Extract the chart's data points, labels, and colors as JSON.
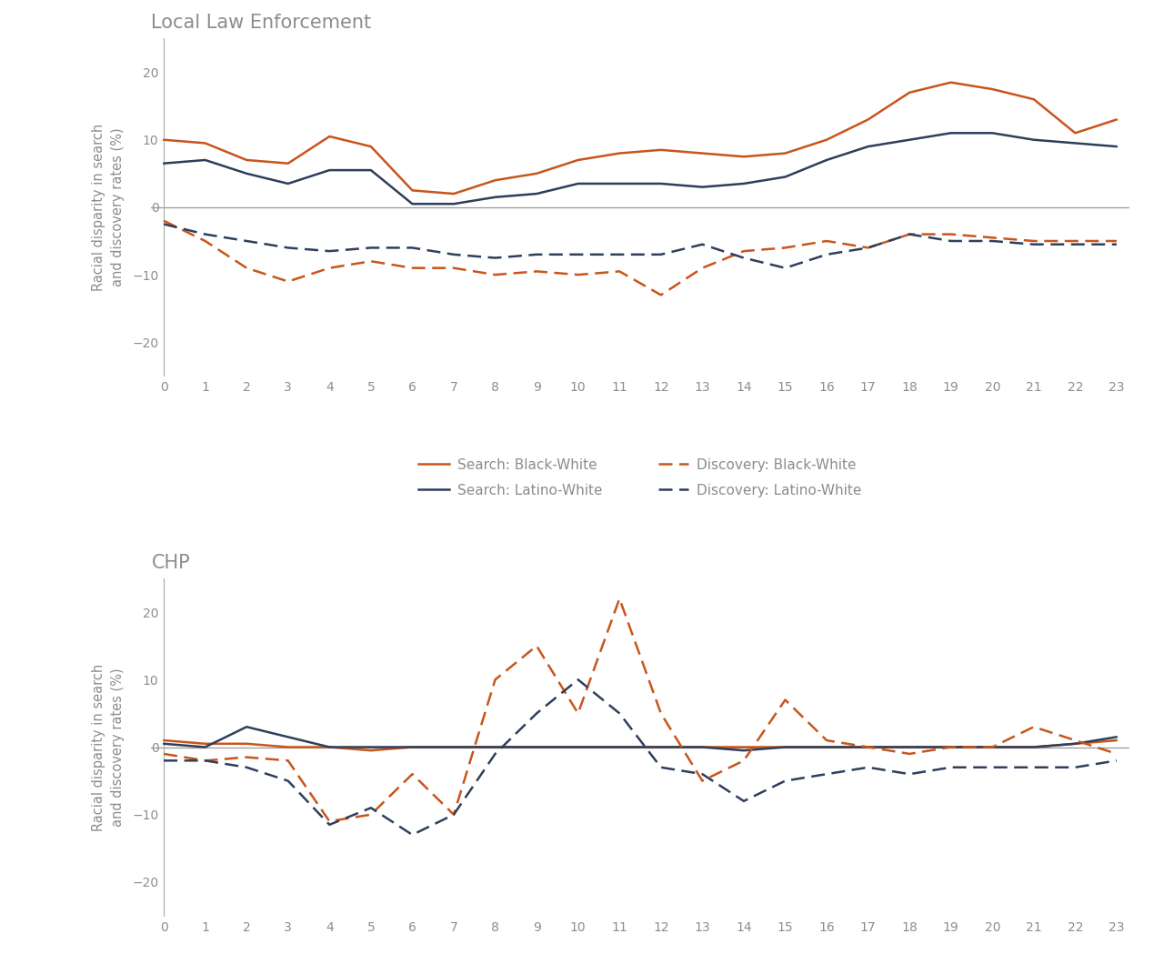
{
  "hours": [
    0,
    1,
    2,
    3,
    4,
    5,
    6,
    7,
    8,
    9,
    10,
    11,
    12,
    13,
    14,
    15,
    16,
    17,
    18,
    19,
    20,
    21,
    22,
    23
  ],
  "lea_search_black": [
    10,
    9.5,
    7,
    6.5,
    10.5,
    9,
    2.5,
    2,
    4,
    5,
    7,
    8,
    8.5,
    8,
    7.5,
    8,
    10,
    13,
    17,
    18.5,
    17.5,
    16,
    11,
    13
  ],
  "lea_search_latino": [
    6.5,
    7,
    5,
    3.5,
    5.5,
    5.5,
    0.5,
    0.5,
    1.5,
    2,
    3.5,
    3.5,
    3.5,
    3,
    3.5,
    4.5,
    7,
    9,
    10,
    11,
    11,
    10,
    9.5,
    9
  ],
  "lea_discovery_black": [
    -2,
    -5,
    -9,
    -11,
    -9,
    -8,
    -9,
    -9,
    -10,
    -9.5,
    -10,
    -9.5,
    -13,
    -9,
    -6.5,
    -6,
    -5,
    -6,
    -4,
    -4,
    -4.5,
    -5,
    -5,
    -5
  ],
  "lea_discovery_latino": [
    -2.5,
    -4,
    -5,
    -6,
    -6.5,
    -6,
    -6,
    -7,
    -7.5,
    -7,
    -7,
    -7,
    -7,
    -5.5,
    -7.5,
    -9,
    -7,
    -6,
    -4,
    -5,
    -5,
    -5.5,
    -5.5,
    -5.5
  ],
  "chp_search_black": [
    1,
    0.5,
    0.5,
    0,
    0,
    -0.5,
    0,
    0,
    0,
    0,
    0,
    0,
    0,
    0,
    0,
    0,
    0,
    0,
    0,
    0,
    0,
    0,
    0.5,
    1
  ],
  "chp_search_latino": [
    0.5,
    0,
    3,
    1.5,
    0,
    0,
    0,
    0,
    0,
    0,
    0,
    0,
    0,
    0,
    -0.5,
    0,
    0,
    0,
    0,
    0,
    0,
    0,
    0.5,
    1.5
  ],
  "chp_discovery_black": [
    -1,
    -2,
    -1.5,
    -2,
    -11,
    -10,
    -4,
    -10,
    10,
    15,
    5,
    22,
    5,
    -5,
    -2,
    7,
    1,
    0,
    -1,
    0,
    0,
    3,
    1,
    -1
  ],
  "chp_discovery_latino": [
    -2,
    -2,
    -3,
    -5,
    -11.5,
    -9,
    -13,
    -10,
    -1,
    5,
    10,
    5,
    -3,
    -4,
    -8,
    -5,
    -4,
    -3,
    -4,
    -3,
    -3,
    -3,
    -3,
    -2
  ],
  "orange_color": "#C8551B",
  "navy_color": "#2E3F5C",
  "title_lea": "Local Law Enforcement",
  "title_chp": "CHP",
  "ylabel": "Racial disparity in search\nand discovery rates (%)",
  "legend_labels": [
    "Search: Black-White",
    "Search: Latino-White",
    "Discovery: Black-White",
    "Discovery: Latino-White"
  ],
  "ylim": [
    -25,
    25
  ],
  "yticks": [
    -20,
    -10,
    0,
    10,
    20
  ],
  "background_color": "#FFFFFF",
  "title_color": "#8C8C8C",
  "ylabel_color": "#8C8C8C",
  "tick_color": "#8C8C8C",
  "zero_line_color": "#999999",
  "spine_color": "#AAAAAA"
}
